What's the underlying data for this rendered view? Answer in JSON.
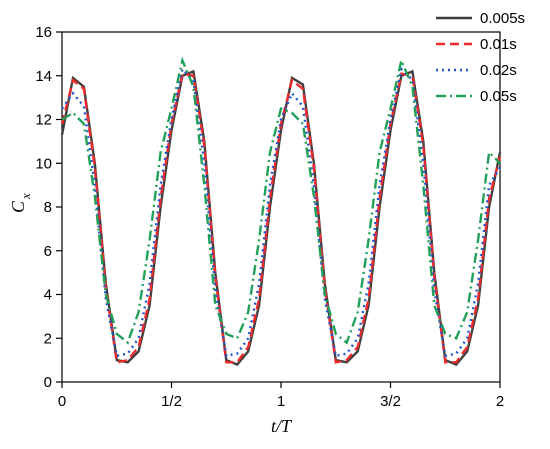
{
  "chart_data": {
    "type": "line",
    "x_label": "t/T",
    "y_label": [
      "C",
      "x"
    ],
    "x": [
      0,
      0.05,
      0.1,
      0.15,
      0.2,
      0.25,
      0.3,
      0.35,
      0.4,
      0.45,
      0.5,
      0.55,
      0.6,
      0.65,
      0.7,
      0.75,
      0.8,
      0.85,
      0.9,
      0.95,
      1,
      1.05,
      1.1,
      1.15,
      1.2,
      1.25,
      1.3,
      1.35,
      1.4,
      1.45,
      1.5,
      1.55,
      1.6,
      1.65,
      1.7,
      1.75,
      1.8,
      1.85,
      1.9,
      1.95,
      2
    ],
    "series": [
      {
        "name": "0.005s",
        "color": "#404040",
        "dash": "solid",
        "values": [
          11.3,
          13.9,
          13.5,
          10.0,
          4.5,
          1.0,
          0.9,
          1.4,
          3.5,
          8.0,
          11.5,
          14.0,
          14.2,
          11.0,
          5.0,
          1.0,
          0.8,
          1.4,
          3.5,
          8.0,
          11.5,
          13.9,
          13.6,
          10.0,
          4.5,
          1.0,
          0.9,
          1.4,
          3.5,
          8.0,
          11.5,
          14.0,
          14.2,
          11.0,
          5.0,
          1.0,
          0.8,
          1.4,
          3.5,
          8.0,
          10.5
        ]
      },
      {
        "name": "0.01s",
        "color": "#ee2a2a",
        "dash": "dashed",
        "values": [
          11.8,
          13.8,
          13.4,
          9.8,
          4.3,
          0.9,
          1.0,
          1.6,
          3.8,
          8.4,
          11.8,
          14.1,
          14.0,
          10.8,
          4.8,
          0.9,
          0.9,
          1.6,
          3.8,
          8.4,
          11.8,
          13.8,
          13.4,
          9.8,
          4.3,
          0.9,
          1.0,
          1.6,
          3.8,
          8.4,
          11.8,
          14.1,
          14.0,
          10.8,
          4.8,
          0.9,
          0.9,
          1.6,
          3.8,
          8.4,
          10.3
        ]
      },
      {
        "name": "0.02s",
        "color": "#2255cc",
        "dash": "dotted",
        "values": [
          12.5,
          13.2,
          12.6,
          9.0,
          3.8,
          1.2,
          1.3,
          2.0,
          4.5,
          9.0,
          12.0,
          14.3,
          13.8,
          10.0,
          4.2,
          1.2,
          1.3,
          2.0,
          4.5,
          9.0,
          12.0,
          13.2,
          12.6,
          9.0,
          3.8,
          1.2,
          1.3,
          2.0,
          4.5,
          9.0,
          12.0,
          14.3,
          13.8,
          10.0,
          4.2,
          1.2,
          1.3,
          2.0,
          4.5,
          9.0,
          9.8
        ]
      },
      {
        "name": "0.05s",
        "color": "#22a05a",
        "dash": "dashdot",
        "values": [
          12.0,
          12.3,
          11.8,
          8.5,
          4.0,
          2.2,
          1.8,
          3.2,
          6.5,
          10.5,
          12.5,
          14.7,
          13.5,
          9.0,
          3.5,
          2.2,
          2.0,
          3.2,
          6.5,
          10.5,
          12.5,
          12.3,
          11.8,
          8.5,
          4.0,
          2.2,
          1.8,
          3.2,
          6.5,
          10.5,
          12.5,
          14.7,
          13.5,
          9.0,
          3.5,
          2.2,
          2.0,
          3.2,
          6.5,
          10.5,
          10.0
        ]
      }
    ],
    "xlim": [
      0,
      2
    ],
    "xticks": [
      0,
      {
        "value": 0.5,
        "label": "1/2"
      },
      1,
      {
        "value": 1.5,
        "label": "3/2"
      },
      2
    ],
    "ylim": [
      0,
      16
    ],
    "yticks": [
      0,
      2,
      4,
      6,
      8,
      10,
      12,
      14,
      16
    ],
    "grid": false,
    "legend": "top-right"
  }
}
